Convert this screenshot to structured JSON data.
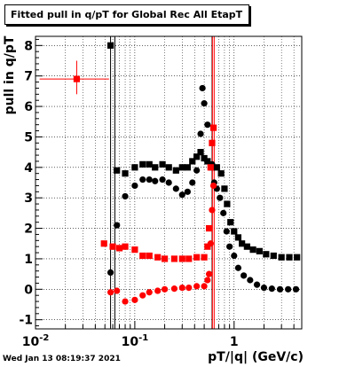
{
  "title": "Fitted pull in q/pT for Global Rec All EtapT",
  "datestamp": "Wed Jan 13 08:19:37 2021",
  "chart_data": {
    "type": "scatter",
    "title": "Fitted pull in q/pT for Global Rec All EtapT",
    "xlabel": "pT/|q| (GeV/c)",
    "ylabel": "pull in q/pT",
    "xscale": "log",
    "xlim": [
      0.01,
      4.8
    ],
    "ylim": [
      -1.3,
      8.3
    ],
    "grid": true,
    "x_ticks": [
      {
        "value": 0.01,
        "label": "10",
        "exp": "-2"
      },
      {
        "value": 0.1,
        "label": "10",
        "exp": "-1"
      },
      {
        "value": 1,
        "label": "1",
        "exp": ""
      }
    ],
    "y_ticks": [
      -1,
      0,
      1,
      2,
      3,
      4,
      5,
      6,
      7,
      8
    ],
    "series": [
      {
        "color": "#000000",
        "marker": "square",
        "points": [
          [
            0.057,
            8.0
          ],
          [
            0.066,
            3.9
          ],
          [
            0.08,
            3.8
          ],
          [
            0.1,
            4.0
          ],
          [
            0.12,
            4.1
          ],
          [
            0.14,
            4.1
          ],
          [
            0.16,
            4.0
          ],
          [
            0.19,
            4.1
          ],
          [
            0.22,
            4.0
          ],
          [
            0.26,
            3.9
          ],
          [
            0.3,
            4.0
          ],
          [
            0.34,
            4.0
          ],
          [
            0.38,
            4.2
          ],
          [
            0.42,
            4.35
          ],
          [
            0.46,
            4.5
          ],
          [
            0.5,
            4.3
          ],
          [
            0.54,
            4.2
          ],
          [
            0.6,
            4.0
          ],
          [
            0.67,
            4.0
          ],
          [
            0.74,
            3.8
          ],
          [
            0.8,
            3.3
          ],
          [
            0.85,
            2.8
          ],
          [
            0.92,
            2.2
          ],
          [
            1.0,
            1.9
          ],
          [
            1.1,
            1.7
          ],
          [
            1.2,
            1.5
          ],
          [
            1.35,
            1.4
          ],
          [
            1.55,
            1.3
          ],
          [
            1.8,
            1.25
          ],
          [
            2.1,
            1.15
          ],
          [
            2.5,
            1.1
          ],
          [
            3.0,
            1.05
          ],
          [
            3.6,
            1.05
          ],
          [
            4.3,
            1.05
          ]
        ]
      },
      {
        "color": "#000000",
        "marker": "circle",
        "points": [
          [
            0.057,
            0.55
          ],
          [
            0.066,
            2.1
          ],
          [
            0.08,
            3.05
          ],
          [
            0.1,
            3.4
          ],
          [
            0.12,
            3.6
          ],
          [
            0.14,
            3.6
          ],
          [
            0.16,
            3.55
          ],
          [
            0.19,
            3.6
          ],
          [
            0.22,
            3.5
          ],
          [
            0.26,
            3.3
          ],
          [
            0.3,
            3.1
          ],
          [
            0.34,
            3.2
          ],
          [
            0.38,
            3.5
          ],
          [
            0.42,
            3.9
          ],
          [
            0.46,
            5.1
          ],
          [
            0.48,
            6.6
          ],
          [
            0.5,
            6.1
          ],
          [
            0.54,
            5.4
          ],
          [
            0.6,
            4.1
          ],
          [
            0.63,
            3.5
          ],
          [
            0.67,
            3.3
          ],
          [
            0.72,
            3.0
          ],
          [
            0.78,
            2.5
          ],
          [
            0.84,
            1.9
          ],
          [
            0.9,
            1.4
          ],
          [
            1.0,
            1.1
          ],
          [
            1.1,
            0.7
          ],
          [
            1.25,
            0.45
          ],
          [
            1.45,
            0.3
          ],
          [
            1.7,
            0.15
          ],
          [
            2.0,
            0.05
          ],
          [
            2.4,
            0.02
          ],
          [
            2.9,
            0.0
          ],
          [
            3.5,
            0.0
          ],
          [
            4.2,
            0.0
          ]
        ]
      },
      {
        "color": "#ff0000",
        "marker": "square",
        "points": [
          [
            0.026,
            6.9
          ],
          [
            0.049,
            1.5
          ],
          [
            0.06,
            1.4
          ],
          [
            0.07,
            1.35
          ],
          [
            0.08,
            1.4
          ],
          [
            0.1,
            1.3
          ],
          [
            0.12,
            1.1
          ],
          [
            0.14,
            1.1
          ],
          [
            0.17,
            1.05
          ],
          [
            0.2,
            1.0
          ],
          [
            0.25,
            1.0
          ],
          [
            0.3,
            1.0
          ],
          [
            0.35,
            1.0
          ],
          [
            0.42,
            1.05
          ],
          [
            0.5,
            1.05
          ],
          [
            0.54,
            1.4
          ],
          [
            0.56,
            2.0
          ],
          [
            0.58,
            4.0
          ],
          [
            0.6,
            4.8
          ],
          [
            0.62,
            5.3
          ]
        ]
      },
      {
        "color": "#ff0000",
        "marker": "circle",
        "points": [
          [
            0.057,
            -0.1
          ],
          [
            0.066,
            -0.05
          ],
          [
            0.08,
            -0.4
          ],
          [
            0.1,
            -0.35
          ],
          [
            0.12,
            -0.2
          ],
          [
            0.14,
            -0.1
          ],
          [
            0.17,
            -0.05
          ],
          [
            0.2,
            0.0
          ],
          [
            0.25,
            0.02
          ],
          [
            0.3,
            0.05
          ],
          [
            0.35,
            0.05
          ],
          [
            0.42,
            0.1
          ],
          [
            0.5,
            0.1
          ],
          [
            0.54,
            0.3
          ],
          [
            0.56,
            0.5
          ],
          [
            0.58,
            1.5
          ],
          [
            0.6,
            2.6
          ],
          [
            0.62,
            3.4
          ]
        ]
      }
    ],
    "annotations": {
      "vertical_lines": [
        {
          "x": 0.057,
          "color": "#000000"
        },
        {
          "x": 0.063,
          "color": "#000000"
        },
        {
          "x": 0.6,
          "color": "#000000"
        },
        {
          "x": 0.605,
          "color": "#ff0000"
        },
        {
          "x": 0.63,
          "color": "#ff0000"
        }
      ]
    }
  }
}
